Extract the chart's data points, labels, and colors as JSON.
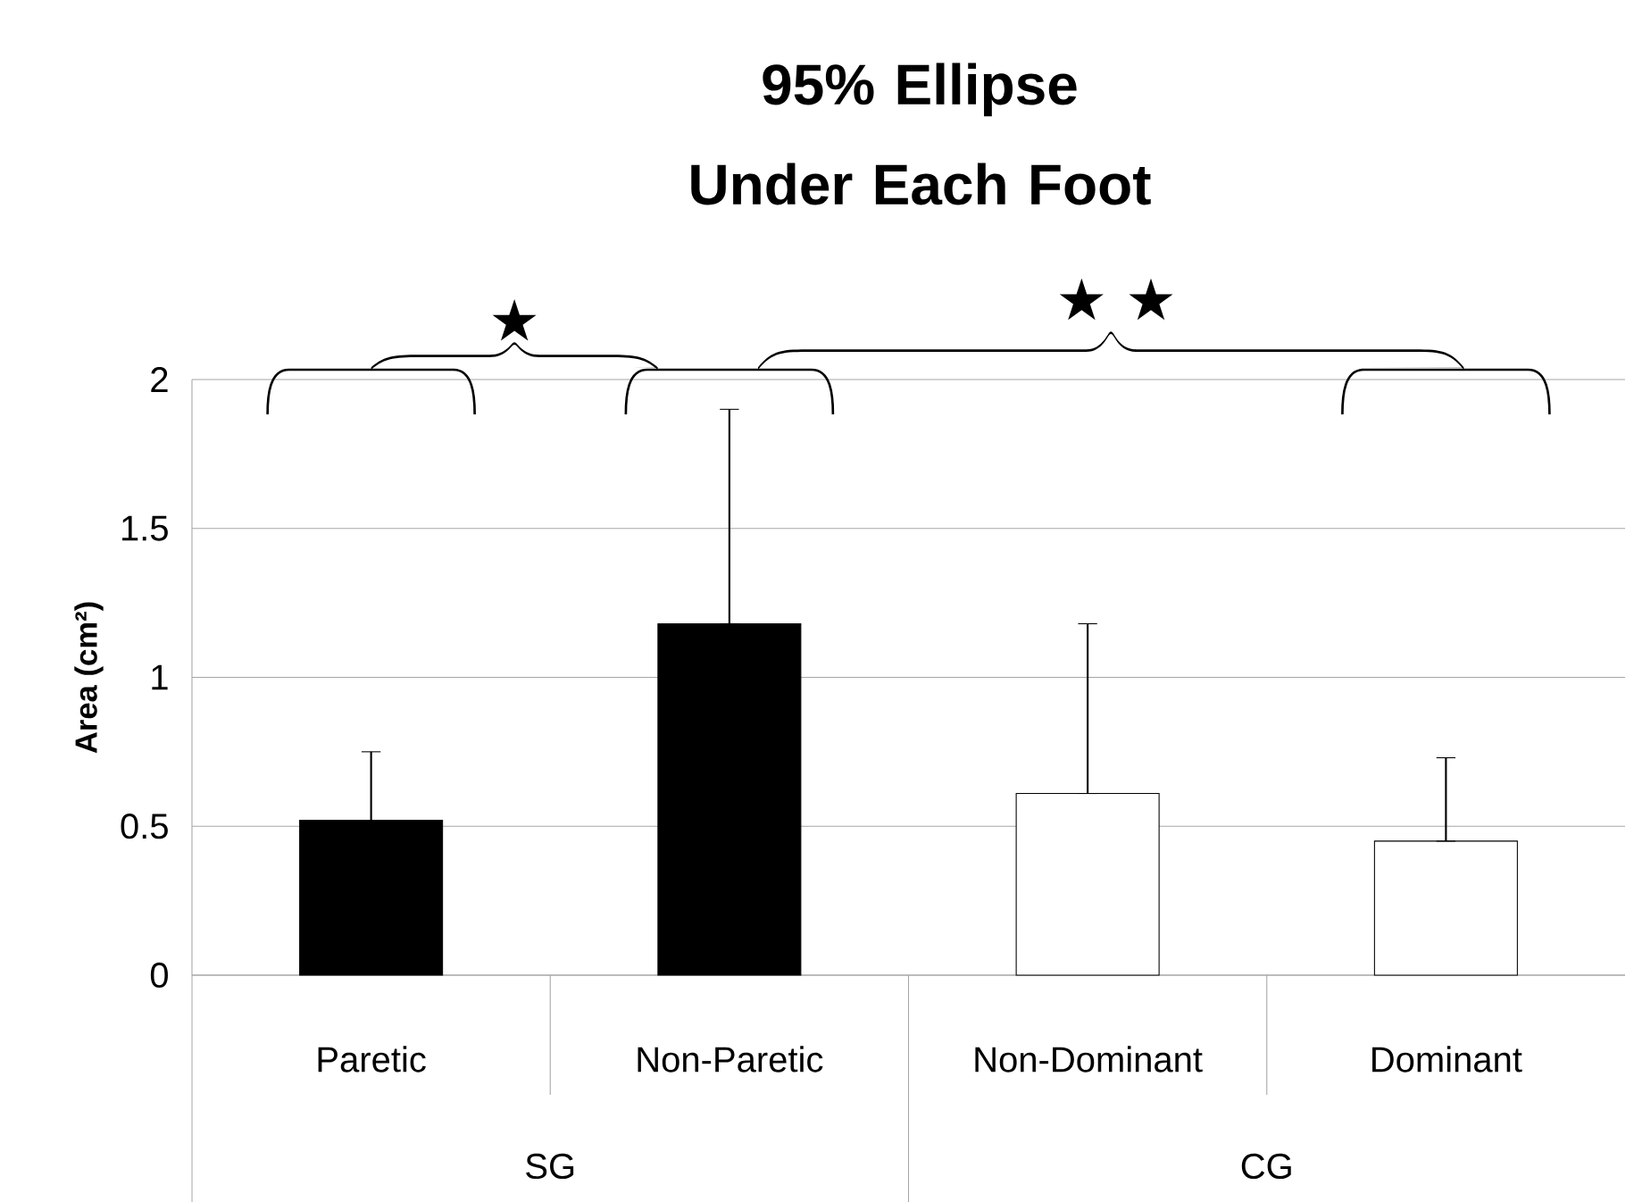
{
  "chart_data": {
    "type": "bar",
    "title": "95% Ellipse Under Each Foot",
    "ylabel": "Area (cm²)",
    "categories": [
      "Paretic",
      "Non-Paretic",
      "Non-Dominant",
      "Dominant"
    ],
    "values": [
      0.52,
      1.18,
      0.61,
      0.45
    ],
    "errors": [
      [
        0.52,
        0.75
      ],
      [
        1.18,
        1.9
      ],
      [
        0.61,
        1.18
      ],
      [
        0.45,
        0.73
      ]
    ],
    "colors": [
      "#000000",
      "#000000",
      "#ffffff",
      "#ffffff"
    ],
    "ylim": [
      0,
      2
    ],
    "yticks": [
      0,
      0.5,
      1,
      1.5,
      2
    ],
    "grid": "y",
    "annotations": [
      "★",
      "★ ★",
      "SG",
      "CG"
    ]
  }
}
